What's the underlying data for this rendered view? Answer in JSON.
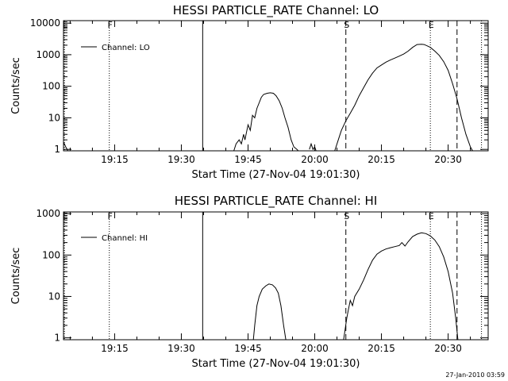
{
  "footer_stamp": "27-Jan-2010 03:59",
  "chart_data": [
    {
      "type": "line",
      "title": "HESSI PARTICLE_RATE Channel: LO",
      "xlabel": "Start Time (27-Nov-04 19:01:30)",
      "ylabel": "Counts/sec",
      "x_unit": "minutes after 19:00",
      "xlim": [
        3.5,
        99.0
      ],
      "x_ticks": [
        {
          "value": 15,
          "label": "19:15"
        },
        {
          "value": 30,
          "label": "19:30"
        },
        {
          "value": 45,
          "label": "19:45"
        },
        {
          "value": 60,
          "label": "20:00"
        },
        {
          "value": 75,
          "label": "20:15"
        },
        {
          "value": 90,
          "label": "20:30"
        }
      ],
      "y_scale": "log",
      "ylim": [
        0.9,
        12000
      ],
      "y_ticks": [
        {
          "value": 1,
          "label": "1"
        },
        {
          "value": 10,
          "label": "10"
        },
        {
          "value": 100,
          "label": "100"
        },
        {
          "value": 1000,
          "label": "1000"
        },
        {
          "value": 10000,
          "label": "10000"
        }
      ],
      "legend": {
        "position": "top-left",
        "label": "Channel: LO"
      },
      "grid": false,
      "markers": [
        {
          "x": 3.7,
          "label": "E",
          "style": "dotted"
        },
        {
          "x": 13.8,
          "label": "F",
          "style": "dotted"
        },
        {
          "x": 34.8,
          "label": "",
          "style": "solid"
        },
        {
          "x": 67.0,
          "label": "S",
          "style": "dashed"
        },
        {
          "x": 86.0,
          "label": "E",
          "style": "dotted"
        },
        {
          "x": 92.0,
          "label": "",
          "style": "dashed"
        },
        {
          "x": 97.5,
          "label": "",
          "style": "dotted"
        }
      ],
      "series": [
        {
          "segments": [
            [
              [
                3.6,
                1.6
              ],
              [
                4.0,
                1.2
              ],
              [
                4.5,
                0.9
              ]
            ],
            [
              [
                41.8,
                0.9
              ],
              [
                42.3,
                1.5
              ],
              [
                43.0,
                2.0
              ],
              [
                43.5,
                1.5
              ],
              [
                44.0,
                3.0
              ],
              [
                44.3,
                2.0
              ],
              [
                45.0,
                6.0
              ],
              [
                45.5,
                4.0
              ],
              [
                46.0,
                12
              ],
              [
                46.5,
                10
              ],
              [
                47.0,
                20
              ],
              [
                47.5,
                30
              ],
              [
                48.0,
                45
              ],
              [
                48.5,
                55
              ],
              [
                49.3,
                60
              ],
              [
                50.0,
                62
              ],
              [
                50.7,
                60
              ],
              [
                51.3,
                50
              ],
              [
                52.0,
                35
              ],
              [
                52.7,
                20
              ],
              [
                53.3,
                10
              ],
              [
                54.0,
                5.0
              ],
              [
                54.7,
                2.0
              ],
              [
                55.3,
                1.2
              ],
              [
                56.0,
                1.0
              ],
              [
                56.3,
                0.9
              ]
            ],
            [
              [
                58.8,
                1.0
              ],
              [
                59.2,
                1.5
              ],
              [
                59.6,
                1.0
              ],
              [
                60.0,
                1.2
              ],
              [
                60.3,
                0.9
              ]
            ],
            [
              [
                64.5,
                0.9
              ],
              [
                65.3,
                2.0
              ],
              [
                66.0,
                4.0
              ],
              [
                67.0,
                8.0
              ],
              [
                68.0,
                14
              ],
              [
                69.0,
                25
              ],
              [
                70.0,
                50
              ],
              [
                71.0,
                90
              ],
              [
                72.0,
                160
              ],
              [
                73.0,
                260
              ],
              [
                74.0,
                380
              ],
              [
                75.0,
                470
              ],
              [
                76.0,
                580
              ],
              [
                77.0,
                680
              ],
              [
                78.0,
                780
              ],
              [
                79.0,
                900
              ],
              [
                80.0,
                1050
              ],
              [
                81.0,
                1300
              ],
              [
                82.0,
                1700
              ],
              [
                83.0,
                2100
              ],
              [
                84.0,
                2150
              ],
              [
                84.6,
                2100
              ],
              [
                85.3,
                1900
              ],
              [
                86.0,
                1700
              ],
              [
                87.0,
                1300
              ],
              [
                88.0,
                950
              ],
              [
                89.0,
                600
              ],
              [
                90.0,
                320
              ],
              [
                91.0,
                120
              ],
              [
                92.0,
                40
              ],
              [
                93.0,
                10
              ],
              [
                94.0,
                3.0
              ],
              [
                95.0,
                1.2
              ],
              [
                95.5,
                0.9
              ]
            ]
          ]
        }
      ]
    },
    {
      "type": "line",
      "title": "HESSI PARTICLE_RATE Channel: HI",
      "xlabel": "Start Time (27-Nov-04 19:01:30)",
      "ylabel": "Counts/sec",
      "x_unit": "minutes after 19:00",
      "xlim": [
        3.5,
        99.0
      ],
      "x_ticks": [
        {
          "value": 15,
          "label": "19:15"
        },
        {
          "value": 30,
          "label": "19:30"
        },
        {
          "value": 45,
          "label": "19:45"
        },
        {
          "value": 60,
          "label": "20:00"
        },
        {
          "value": 75,
          "label": "20:15"
        },
        {
          "value": 90,
          "label": "20:30"
        }
      ],
      "y_scale": "log",
      "ylim": [
        0.9,
        1100
      ],
      "y_ticks": [
        {
          "value": 1,
          "label": "1"
        },
        {
          "value": 10,
          "label": "10"
        },
        {
          "value": 100,
          "label": "100"
        },
        {
          "value": 1000,
          "label": "1000"
        }
      ],
      "legend": {
        "position": "top-left",
        "label": "Channel: HI"
      },
      "grid": false,
      "markers": [
        {
          "x": 3.7,
          "label": "E",
          "style": "dotted"
        },
        {
          "x": 13.8,
          "label": "F",
          "style": "dotted"
        },
        {
          "x": 34.8,
          "label": "",
          "style": "solid"
        },
        {
          "x": 67.0,
          "label": "S",
          "style": "dashed"
        },
        {
          "x": 86.0,
          "label": "E",
          "style": "dotted"
        },
        {
          "x": 92.0,
          "label": "",
          "style": "dashed"
        },
        {
          "x": 97.5,
          "label": "",
          "style": "dotted"
        }
      ],
      "series": [
        {
          "segments": [
            [
              [
                46.2,
                0.9
              ],
              [
                46.5,
                2.0
              ],
              [
                47.0,
                6.0
              ],
              [
                47.5,
                10
              ],
              [
                48.2,
                15
              ],
              [
                49.0,
                18
              ],
              [
                49.7,
                20
              ],
              [
                50.5,
                19
              ],
              [
                51.2,
                16
              ],
              [
                51.8,
                12
              ],
              [
                52.4,
                6.0
              ],
              [
                53.0,
                2.0
              ],
              [
                53.5,
                0.9
              ]
            ],
            [
              [
                66.5,
                0.9
              ],
              [
                66.8,
                1.5
              ],
              [
                67.2,
                3.0
              ],
              [
                67.6,
                5.0
              ],
              [
                68.0,
                8.0
              ],
              [
                68.5,
                6.0
              ],
              [
                69.0,
                10
              ],
              [
                70.0,
                15
              ],
              [
                71.0,
                25
              ],
              [
                72.0,
                45
              ],
              [
                73.0,
                75
              ],
              [
                74.0,
                105
              ],
              [
                75.0,
                125
              ],
              [
                76.0,
                140
              ],
              [
                77.0,
                150
              ],
              [
                78.0,
                160
              ],
              [
                79.0,
                170
              ],
              [
                79.6,
                200
              ],
              [
                80.3,
                165
              ],
              [
                81.0,
                210
              ],
              [
                82.0,
                280
              ],
              [
                83.0,
                320
              ],
              [
                84.0,
                345
              ],
              [
                85.0,
                330
              ],
              [
                86.0,
                290
              ],
              [
                87.0,
                230
              ],
              [
                88.0,
                160
              ],
              [
                89.0,
                90
              ],
              [
                90.0,
                40
              ],
              [
                91.0,
                12
              ],
              [
                91.7,
                3.0
              ],
              [
                92.2,
                0.9
              ]
            ]
          ]
        }
      ]
    }
  ]
}
